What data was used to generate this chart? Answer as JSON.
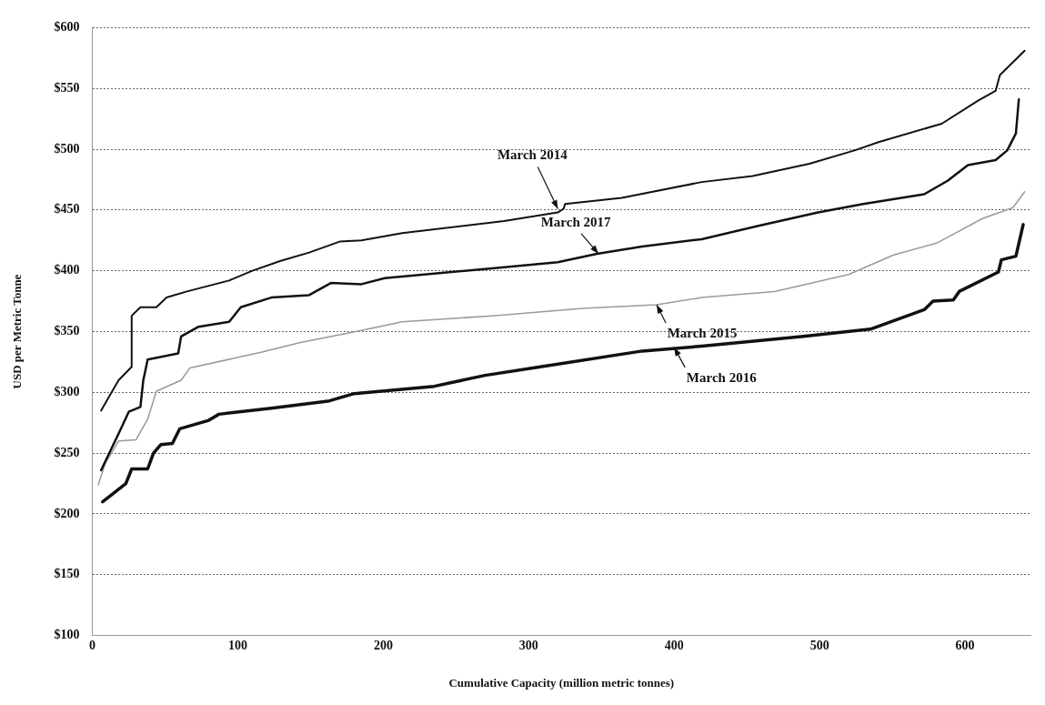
{
  "chart_data": {
    "type": "line",
    "xlabel": "Cumulative Capacity (million metric tonnes)",
    "ylabel": "USD per Metric Tonne",
    "xlim": [
      0,
      645
    ],
    "xticks": [
      0,
      100,
      200,
      300,
      400,
      500,
      600
    ],
    "ylim": [
      100,
      600
    ],
    "yticks": [
      {
        "value": 100,
        "label": "$100"
      },
      {
        "value": 150,
        "label": "$150"
      },
      {
        "value": 200,
        "label": "$200"
      },
      {
        "value": 250,
        "label": "$250"
      },
      {
        "value": 300,
        "label": "$300"
      },
      {
        "value": 350,
        "label": "$350"
      },
      {
        "value": 400,
        "label": "$400"
      },
      {
        "value": 450,
        "label": "$450"
      },
      {
        "value": 500,
        "label": "$500"
      },
      {
        "value": 550,
        "label": "$550"
      },
      {
        "value": 600,
        "label": "$600"
      }
    ],
    "grid": "y",
    "legend": false,
    "marker": "none",
    "line_style": "solid",
    "series": [
      {
        "color": "#111111",
        "x": [
          6,
          18,
          27,
          27,
          33,
          44,
          51,
          65,
          94,
          110,
          129,
          149,
          170,
          185,
          213,
          283,
          320,
          324,
          325,
          364,
          419,
          454,
          493,
          524,
          541,
          584,
          609,
          621,
          624,
          641
        ],
        "values": [
          285,
          310,
          321,
          363,
          370,
          370,
          378,
          383,
          392,
          400,
          408,
          415,
          424,
          425,
          431,
          441,
          448,
          451,
          455,
          460,
          473,
          478,
          488,
          499,
          506,
          521,
          540,
          548,
          561,
          581
        ]
      },
      {
        "color": "#111111",
        "x": [
          6,
          18,
          25,
          33,
          35,
          38,
          59,
          61,
          73,
          94,
          102,
          123,
          149,
          164,
          185,
          201,
          275,
          320,
          347,
          378,
          419,
          458,
          499,
          530,
          572,
          588,
          602,
          621,
          629,
          635,
          637
        ],
        "values": [
          236,
          266,
          284,
          288,
          310,
          327,
          332,
          346,
          354,
          358,
          370,
          378,
          380,
          390,
          389,
          394,
          402,
          407,
          414,
          420,
          426,
          437,
          448,
          455,
          463,
          474,
          487,
          491,
          499,
          513,
          541
        ]
      },
      {
        "color": "#9a9a9a",
        "x": [
          4,
          9,
          18,
          30,
          38,
          44,
          61,
          67,
          116,
          143,
          185,
          213,
          275,
          337,
          388,
          419,
          469,
          520,
          551,
          581,
          612,
          633,
          641
        ],
        "values": [
          224,
          242,
          260,
          261,
          278,
          301,
          310,
          320,
          333,
          341,
          351,
          358,
          363,
          369,
          372,
          378,
          383,
          397,
          413,
          423,
          443,
          452,
          465
        ]
      },
      {
        "color": "#111111",
        "x": [
          7,
          23,
          27,
          38,
          42,
          47,
          55,
          60,
          80,
          87,
          123,
          163,
          180,
          235,
          270,
          308,
          378,
          419,
          489,
          535,
          572,
          578,
          592,
          596,
          623,
          625,
          635,
          640
        ],
        "values": [
          210,
          225,
          237,
          237,
          250,
          257,
          258,
          270,
          277,
          282,
          287,
          293,
          299,
          305,
          314,
          321,
          334,
          338,
          346,
          352,
          368,
          375,
          376,
          383,
          399,
          409,
          412,
          438
        ]
      }
    ],
    "annotations": [
      {
        "text": "March 2014",
        "x": 320,
        "y": 451
      },
      {
        "text": "March 2017",
        "x": 348,
        "y": 414
      },
      {
        "text": "March 2015",
        "x": 388,
        "y": 372
      },
      {
        "text": "March 2016",
        "x": 400,
        "y": 337
      }
    ]
  }
}
